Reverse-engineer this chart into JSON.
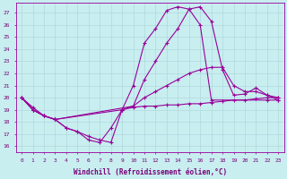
{
  "xlabel": "Windchill (Refroidissement éolien,°C)",
  "bg_color": "#c8eef0",
  "grid_color": "#b0d8dc",
  "line_color": "#990099",
  "xlim": [
    -0.5,
    23.5
  ],
  "ylim": [
    15.5,
    27.8
  ],
  "xticks": [
    0,
    1,
    2,
    3,
    4,
    5,
    6,
    7,
    8,
    9,
    10,
    11,
    12,
    13,
    14,
    15,
    16,
    17,
    18,
    19,
    20,
    21,
    22,
    23
  ],
  "yticks": [
    16,
    17,
    18,
    19,
    20,
    21,
    22,
    23,
    24,
    25,
    26,
    27
  ],
  "curves": [
    {
      "x": [
        0,
        1,
        2,
        3,
        4,
        5,
        6,
        7,
        8,
        9,
        10,
        11,
        12,
        13,
        14,
        15,
        16,
        17,
        22,
        23
      ],
      "y": [
        20,
        19,
        18.5,
        18.2,
        17.5,
        17.2,
        16.8,
        16.5,
        16.3,
        19.0,
        21.0,
        24.5,
        25.7,
        27.2,
        27.5,
        27.3,
        26.0,
        19.8,
        19.8,
        19.8
      ]
    },
    {
      "x": [
        0,
        1,
        2,
        3,
        10,
        11,
        12,
        13,
        14,
        15,
        16,
        17,
        18,
        19,
        20,
        21,
        22,
        23
      ],
      "y": [
        20,
        19,
        18.5,
        18.2,
        19.3,
        20.0,
        20.5,
        21.0,
        21.5,
        22.0,
        22.3,
        22.5,
        22.5,
        21.0,
        20.5,
        20.5,
        20.2,
        20.0
      ]
    },
    {
      "x": [
        0,
        1,
        2,
        3,
        4,
        5,
        6,
        7,
        8,
        9,
        10,
        11,
        12,
        13,
        14,
        15,
        16,
        17,
        18,
        19,
        20,
        21,
        22,
        23
      ],
      "y": [
        20,
        19.2,
        18.5,
        18.2,
        17.5,
        17.2,
        16.5,
        16.3,
        17.5,
        19.0,
        19.2,
        19.3,
        19.3,
        19.4,
        19.4,
        19.5,
        19.5,
        19.6,
        19.7,
        19.8,
        19.8,
        19.9,
        20.0,
        20.0
      ]
    },
    {
      "x": [
        0,
        1,
        2,
        3,
        9,
        10,
        11,
        12,
        13,
        14,
        15,
        16,
        17,
        18,
        19,
        20,
        21,
        22,
        23
      ],
      "y": [
        20,
        19,
        18.5,
        18.2,
        19.0,
        19.3,
        21.5,
        23.0,
        24.5,
        25.7,
        27.3,
        27.5,
        26.3,
        22.3,
        20.2,
        20.3,
        20.8,
        20.2,
        19.8
      ]
    }
  ],
  "marker": "+",
  "markersize": 3,
  "linewidth": 0.8,
  "tick_fontsize": 4.5,
  "label_fontsize": 5.5,
  "tick_color": "#770077",
  "label_color": "#770077"
}
